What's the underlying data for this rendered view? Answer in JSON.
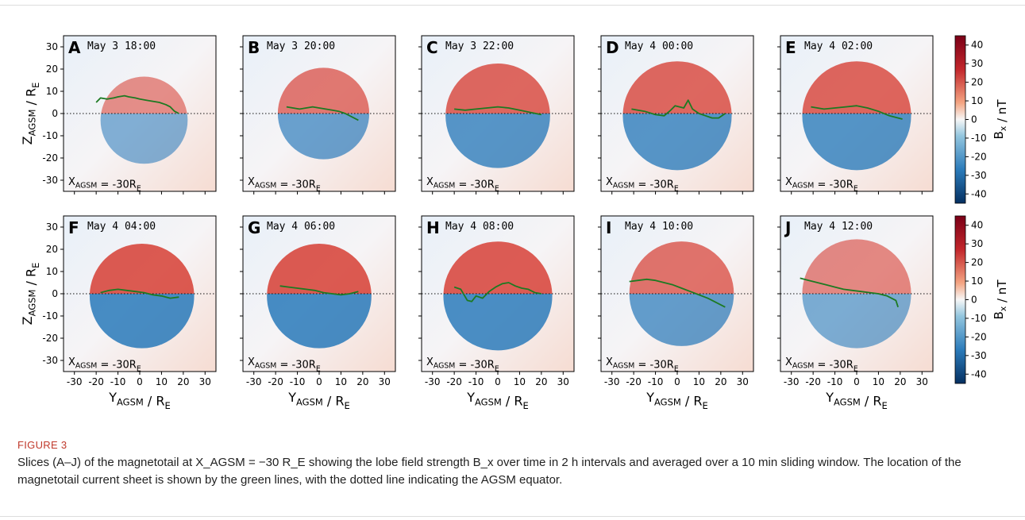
{
  "figure": {
    "ylabel": "Z_{AGSM} / R_E",
    "xlabel": "Y_{AGSM} / R_E",
    "cbar_label": "B_x / nT",
    "position_label": "X_{AGSM} = -30R_E",
    "ticks": [
      "-30",
      "-20",
      "-10",
      "0",
      "10",
      "20",
      "30"
    ],
    "cbar_ticks": [
      "40",
      "30",
      "20",
      "10",
      "0",
      "-10",
      "-20",
      "-30",
      "-40"
    ],
    "colors": {
      "red": "#c2262b",
      "blue": "#2b7bba",
      "sheet": "#1d7a22"
    }
  },
  "chart_data": [
    {
      "type": "heatmap",
      "panel": "A",
      "time": "May 3 18:00",
      "xlim": [
        -35,
        35
      ],
      "ylim": [
        -35,
        35
      ],
      "lobe_radius": 20,
      "strength": 0.35,
      "center": [
        2,
        -3
      ],
      "current_sheet": {
        "y": [
          -20,
          -18,
          -15,
          -12,
          -10,
          -7,
          -5,
          -2,
          0,
          3,
          6,
          9,
          12,
          14,
          16,
          18
        ],
        "z": [
          5,
          7,
          6.5,
          7,
          7.5,
          8,
          7.5,
          7,
          6.5,
          6,
          5.5,
          5,
          4,
          3,
          1,
          0
        ]
      }
    },
    {
      "type": "heatmap",
      "panel": "B",
      "time": "May 3 20:00",
      "xlim": [
        -35,
        35
      ],
      "ylim": [
        -35,
        35
      ],
      "lobe_radius": 21,
      "strength": 0.55,
      "center": [
        2,
        0
      ],
      "current_sheet": {
        "y": [
          -15,
          -12,
          -9,
          -6,
          -3,
          0,
          3,
          6,
          9,
          12,
          15,
          18
        ],
        "z": [
          3,
          2.5,
          2,
          2.5,
          3,
          2.5,
          2,
          1.5,
          1,
          0,
          -1.5,
          -3
        ]
      }
    },
    {
      "type": "heatmap",
      "panel": "C",
      "time": "May 3 22:00",
      "xlim": [
        -35,
        35
      ],
      "ylim": [
        -35,
        35
      ],
      "lobe_radius": 24,
      "strength": 0.7,
      "center": [
        0,
        -1
      ],
      "current_sheet": {
        "y": [
          -20,
          -15,
          -10,
          -5,
          0,
          5,
          10,
          15,
          20
        ],
        "z": [
          2,
          1.5,
          2,
          2.5,
          3,
          2.5,
          1.5,
          0.5,
          -0.5
        ]
      }
    },
    {
      "type": "heatmap",
      "panel": "D",
      "time": "May 4 00:00",
      "xlim": [
        -35,
        35
      ],
      "ylim": [
        -35,
        35
      ],
      "lobe_radius": 25,
      "strength": 0.7,
      "center": [
        0,
        -1
      ],
      "current_sheet": {
        "y": [
          -21,
          -15,
          -10,
          -6,
          -3,
          -1,
          1,
          3,
          5,
          7,
          10,
          13,
          16,
          19,
          22
        ],
        "z": [
          2,
          1,
          -0.5,
          -1,
          1.5,
          3.5,
          3,
          2.5,
          6,
          2,
          0,
          -1,
          -2,
          -2,
          0
        ]
      }
    },
    {
      "type": "heatmap",
      "panel": "E",
      "time": "May 4 02:00",
      "xlim": [
        -35,
        35
      ],
      "ylim": [
        -35,
        35
      ],
      "lobe_radius": 25,
      "strength": 0.72,
      "center": [
        0,
        -1
      ],
      "current_sheet": {
        "y": [
          -21,
          -15,
          -10,
          -5,
          0,
          5,
          10,
          15,
          21
        ],
        "z": [
          3,
          2,
          2.5,
          3,
          3.5,
          2.5,
          1,
          -1,
          -2.5
        ]
      }
    },
    {
      "type": "heatmap",
      "panel": "F",
      "time": "May 4 04:00",
      "xlim": [
        -35,
        35
      ],
      "ylim": [
        -35,
        35
      ],
      "lobe_radius": 24,
      "strength": 0.82,
      "center": [
        1,
        -1
      ],
      "current_sheet": {
        "y": [
          -18,
          -14,
          -10,
          -6,
          -2,
          2,
          6,
          10,
          14,
          18
        ],
        "z": [
          0.5,
          1.5,
          2,
          1.5,
          1,
          0.5,
          -0.5,
          -1,
          -2,
          -1.5
        ]
      }
    },
    {
      "type": "heatmap",
      "panel": "G",
      "time": "May 4 06:00",
      "xlim": [
        -35,
        35
      ],
      "ylim": [
        -35,
        35
      ],
      "lobe_radius": 24,
      "strength": 0.82,
      "center": [
        0,
        -1
      ],
      "current_sheet": {
        "y": [
          -18,
          -14,
          -10,
          -6,
          -2,
          2,
          6,
          10,
          14,
          18
        ],
        "z": [
          3.5,
          3,
          2.5,
          2,
          1.5,
          0.5,
          0,
          -0.5,
          0,
          1
        ]
      }
    },
    {
      "type": "heatmap",
      "panel": "H",
      "time": "May 4 08:00",
      "xlim": [
        -35,
        35
      ],
      "ylim": [
        -35,
        35
      ],
      "lobe_radius": 25,
      "strength": 0.8,
      "center": [
        0,
        -1
      ],
      "current_sheet": {
        "y": [
          -20,
          -17,
          -14,
          -12,
          -10,
          -7,
          -4,
          -1,
          2,
          5,
          8,
          11,
          14,
          17,
          20
        ],
        "z": [
          3,
          2,
          -3,
          -3.5,
          -1,
          -2,
          1,
          3,
          4.5,
          5,
          3.5,
          2.5,
          2,
          0.5,
          0
        ]
      }
    },
    {
      "type": "heatmap",
      "panel": "I",
      "time": "May 4 10:00",
      "xlim": [
        -35,
        35
      ],
      "ylim": [
        -35,
        35
      ],
      "lobe_radius": 24,
      "strength": 0.6,
      "center": [
        2,
        0
      ],
      "current_sheet": {
        "y": [
          -22,
          -18,
          -14,
          -10,
          -6,
          -2,
          2,
          6,
          10,
          14,
          18,
          22
        ],
        "z": [
          5.5,
          6,
          6.5,
          6,
          5,
          4,
          2.5,
          1,
          -0.5,
          -2,
          -4,
          -6
        ]
      }
    },
    {
      "type": "heatmap",
      "panel": "J",
      "time": "May 4 12:00",
      "xlim": [
        -35,
        35
      ],
      "ylim": [
        -35,
        35
      ],
      "lobe_radius": 25,
      "strength": 0.4,
      "center": [
        0,
        0
      ],
      "current_sheet": {
        "y": [
          -26,
          -22,
          -18,
          -14,
          -10,
          -6,
          -2,
          2,
          6,
          10,
          14,
          18,
          19
        ],
        "z": [
          7,
          6,
          5,
          4,
          3,
          2,
          1.5,
          1,
          0.5,
          0,
          -1,
          -3,
          -6
        ]
      }
    }
  ],
  "caption": {
    "label": "FIGURE 3",
    "text": "Slices (A–J) of the magnetotail at X_AGSM = −30 R_E showing the lobe field strength B_x over time in 2 h intervals and averaged over a 10 min sliding window. The location of the magnetotail current sheet is shown by the green lines, with the dotted line indicating the AGSM equator."
  }
}
